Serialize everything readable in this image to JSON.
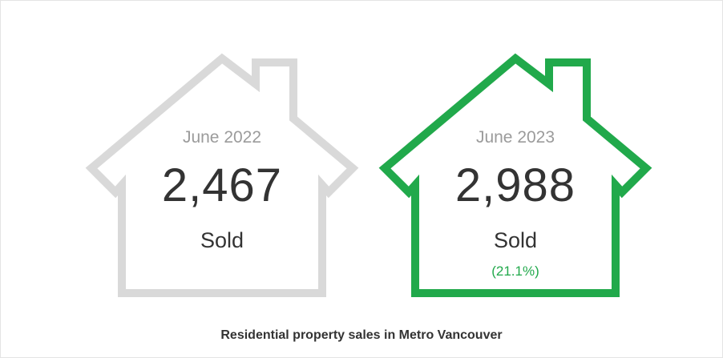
{
  "colors": {
    "house_2022_stroke": "#d9d9d9",
    "house_2023_stroke": "#21a94b",
    "period_text": "#9b9b9b",
    "value_text": "#333333",
    "change_text": "#21a94b"
  },
  "cards": [
    {
      "period": "June 2022",
      "value": "2,467",
      "unit": "Sold"
    },
    {
      "period": "June 2023",
      "value": "2,988",
      "unit": "Sold",
      "change": "(21.1%)"
    }
  ],
  "caption": "Residential property sales in Metro Vancouver"
}
